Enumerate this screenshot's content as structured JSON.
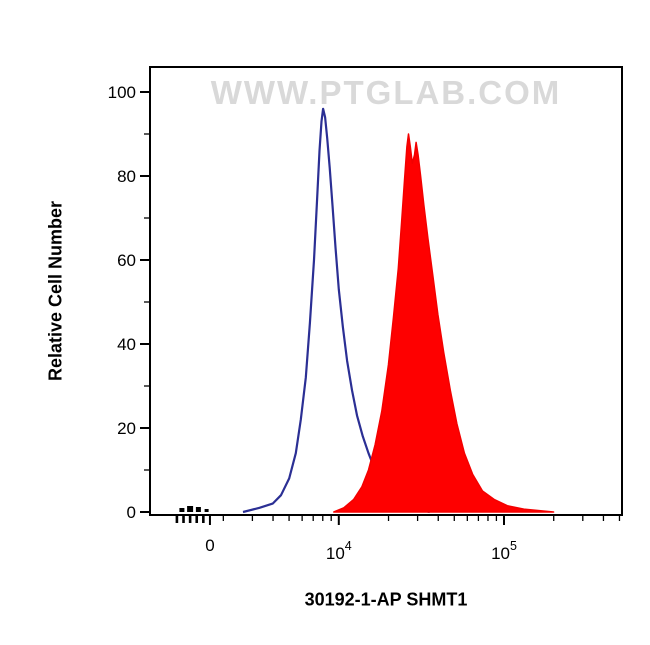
{
  "watermark": {
    "text": "WWW.PTGLAB.COM",
    "color": "#d9d9d9"
  },
  "chart_data": {
    "type": "area",
    "title": "",
    "xlabel": "30192-1-AP SHMT1",
    "ylabel": "Relative Cell Number",
    "x_scale": "biexponential (positions given as log10 fluorescence)",
    "x_axis_log10_range": [
      2.85,
      5.72
    ],
    "ylim": [
      0,
      106
    ],
    "grid": false,
    "legend": "none",
    "y_ticks": [
      0,
      20,
      40,
      60,
      80,
      100
    ],
    "y_minor_ticks": [
      10,
      30,
      50,
      70,
      90
    ],
    "x_ticks": [
      {
        "label": "0",
        "axis_log10": 3.22
      },
      {
        "base": "10",
        "exp": "4",
        "axis_log10": 4
      },
      {
        "base": "10",
        "exp": "5",
        "axis_log10": 5
      }
    ],
    "x_minor_ticks_log10": [
      3.301,
      3.477,
      3.602,
      3.699,
      3.778,
      3.845,
      3.903,
      3.954,
      4.301,
      4.477,
      4.602,
      4.699,
      4.778,
      4.845,
      4.903,
      4.954,
      5.301,
      5.477,
      5.602,
      5.699
    ],
    "x_zero_cluster_ticks_log10": [
      3.02,
      3.06,
      3.1,
      3.14,
      3.18
    ],
    "baseline_events": [
      {
        "log": 3.05,
        "w": 5,
        "h": 4
      },
      {
        "log": 3.1,
        "w": 6,
        "h": 6
      },
      {
        "log": 3.15,
        "w": 5,
        "h": 5
      },
      {
        "log": 3.2,
        "w": 4,
        "h": 3
      }
    ],
    "series": [
      {
        "name": "control",
        "label": "Control (open histogram, blue)",
        "color": "#2b2f94",
        "fill": "none",
        "peak": {
          "x_log10": 3.905,
          "y": 96
        },
        "points": [
          [
            3.42,
            0
          ],
          [
            3.52,
            1
          ],
          [
            3.6,
            2
          ],
          [
            3.65,
            4
          ],
          [
            3.7,
            8
          ],
          [
            3.74,
            14
          ],
          [
            3.77,
            22
          ],
          [
            3.8,
            32
          ],
          [
            3.825,
            45
          ],
          [
            3.85,
            60
          ],
          [
            3.868,
            74
          ],
          [
            3.883,
            86
          ],
          [
            3.895,
            93
          ],
          [
            3.905,
            96
          ],
          [
            3.917,
            94
          ],
          [
            3.93,
            89
          ],
          [
            3.945,
            82
          ],
          [
            3.962,
            73
          ],
          [
            3.98,
            63
          ],
          [
            4.0,
            53
          ],
          [
            4.025,
            44
          ],
          [
            4.05,
            36
          ],
          [
            4.08,
            29
          ],
          [
            4.11,
            23
          ],
          [
            4.145,
            18
          ],
          [
            4.18,
            14
          ],
          [
            4.22,
            10
          ],
          [
            4.27,
            7
          ],
          [
            4.32,
            4
          ],
          [
            4.38,
            2
          ],
          [
            4.45,
            1
          ],
          [
            4.55,
            0
          ]
        ]
      },
      {
        "name": "shmt1",
        "label": "SHMT1 30192-1-AP (filled histogram, red)",
        "color": "#f30000",
        "fill": "#fe0000",
        "peak": {
          "x_log10": 4.422,
          "y": 90
        },
        "points": [
          [
            3.97,
            0
          ],
          [
            4.03,
            1
          ],
          [
            4.09,
            3
          ],
          [
            4.14,
            6
          ],
          [
            4.18,
            10
          ],
          [
            4.22,
            16
          ],
          [
            4.26,
            24
          ],
          [
            4.3,
            35
          ],
          [
            4.33,
            46
          ],
          [
            4.36,
            58
          ],
          [
            4.38,
            69
          ],
          [
            4.398,
            79
          ],
          [
            4.412,
            87
          ],
          [
            4.422,
            90
          ],
          [
            4.433,
            87
          ],
          [
            4.445,
            83
          ],
          [
            4.458,
            85
          ],
          [
            4.468,
            88
          ],
          [
            4.48,
            85
          ],
          [
            4.495,
            80
          ],
          [
            4.515,
            73
          ],
          [
            4.54,
            65
          ],
          [
            4.57,
            56
          ],
          [
            4.6,
            47
          ],
          [
            4.635,
            38
          ],
          [
            4.675,
            29
          ],
          [
            4.715,
            21
          ],
          [
            4.76,
            14
          ],
          [
            4.81,
            9
          ],
          [
            4.87,
            5
          ],
          [
            4.94,
            3
          ],
          [
            5.02,
            1.5
          ],
          [
            5.12,
            0.7
          ],
          [
            5.3,
            0
          ]
        ]
      }
    ]
  }
}
